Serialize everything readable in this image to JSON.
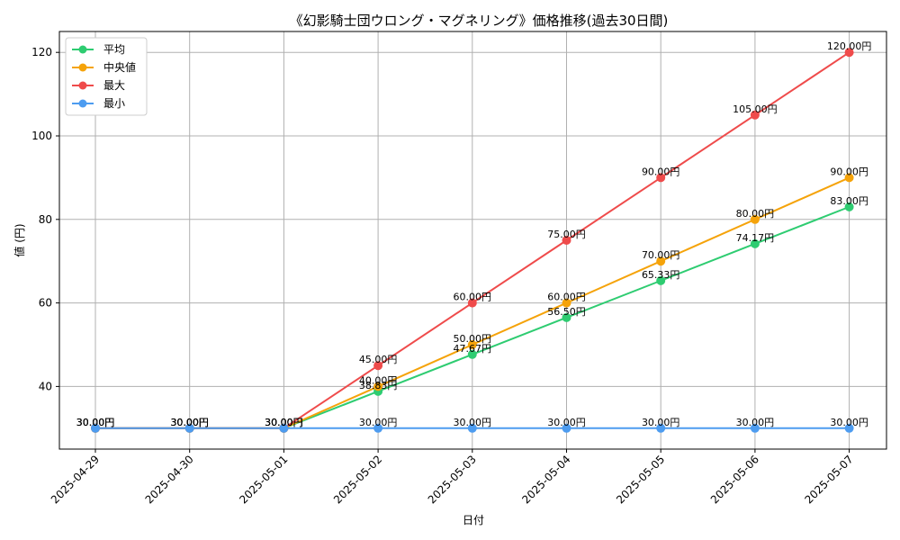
{
  "chart_data": {
    "type": "line",
    "title": "《幻影騎士団ウロング・マグネリング》価格推移(過去30日間)",
    "xlabel": "日付",
    "ylabel": "値 (円)",
    "x": [
      "2025-04-29",
      "2025-04-30",
      "2025-05-01",
      "2025-05-02",
      "2025-05-03",
      "2025-05-04",
      "2025-05-05",
      "2025-05-06",
      "2025-05-07"
    ],
    "ylim": [
      25,
      125
    ],
    "yticks": [
      40,
      60,
      80,
      100,
      120
    ],
    "grid": true,
    "legend_position": "top-left",
    "series": [
      {
        "name": "平均",
        "color": "#2ecc71",
        "values": [
          30,
          30,
          30,
          38.83,
          47.67,
          56.5,
          65.33,
          74.17,
          83
        ],
        "labels": [
          "30.00円",
          "30.00円",
          "30.00円",
          "38.83円",
          "47.67円",
          "56.50円",
          "65.33円",
          "74.17円",
          "83.00円"
        ]
      },
      {
        "name": "中央値",
        "color": "#f5a30a",
        "values": [
          30,
          30,
          30,
          40,
          50,
          60,
          70,
          80,
          90
        ],
        "labels": [
          "30.00円",
          "30.00円",
          "30.00円",
          "40.00円",
          "50.00円",
          "60.00円",
          "70.00円",
          "80.00円",
          "90.00円"
        ]
      },
      {
        "name": "最大",
        "color": "#ef4b4b",
        "values": [
          30,
          30,
          30,
          45,
          60,
          75,
          90,
          105,
          120
        ],
        "labels": [
          "30.00円",
          "30.00円",
          "30.00円",
          "45.00円",
          "60.00円",
          "75.00円",
          "90.00円",
          "105.00円",
          "120.00円"
        ]
      },
      {
        "name": "最小",
        "color": "#4d9cf0",
        "values": [
          30,
          30,
          30,
          30,
          30,
          30,
          30,
          30,
          30
        ],
        "labels": [
          "30.00円",
          "30.00円",
          "30.00円",
          "30.00円",
          "30.00円",
          "30.00円",
          "30.00円",
          "30.00円",
          "30.00円"
        ]
      }
    ]
  }
}
